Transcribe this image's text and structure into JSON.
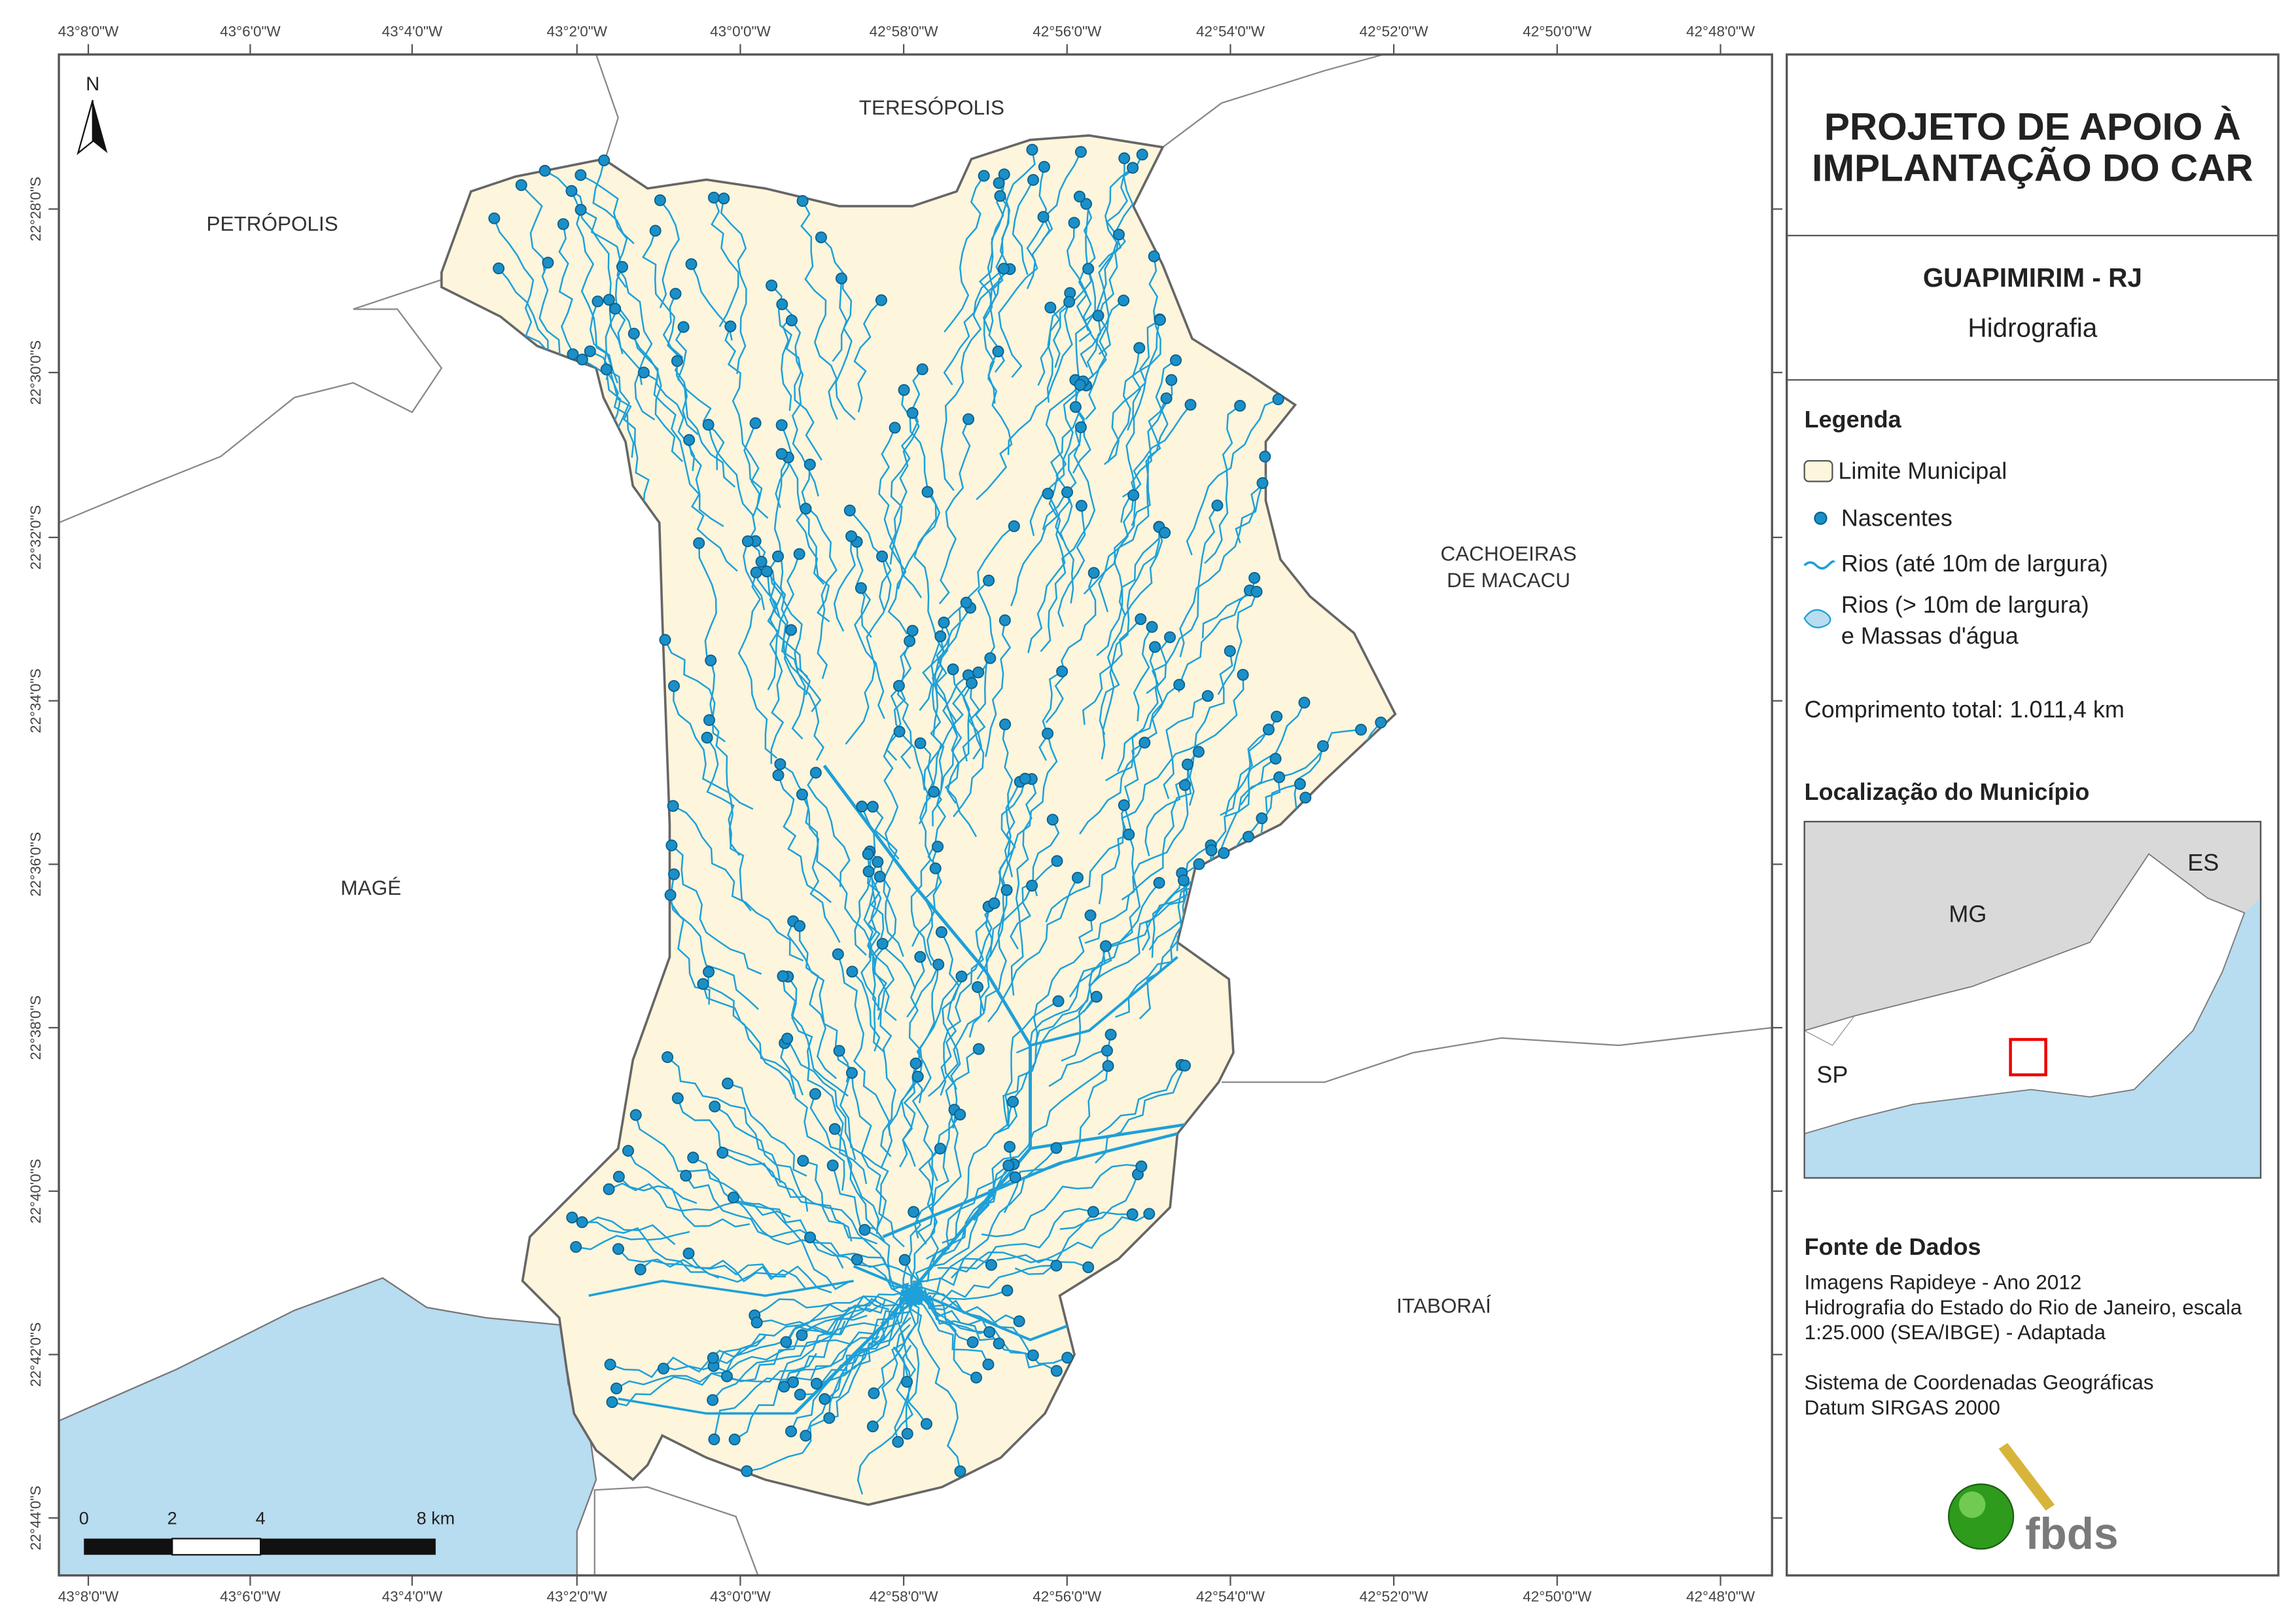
{
  "map": {
    "longitude_labels": [
      "43°8'0\"W",
      "43°6'0\"W",
      "43°4'0\"W",
      "43°2'0\"W",
      "43°0'0\"W",
      "42°58'0\"W",
      "42°56'0\"W",
      "42°54'0\"W",
      "42°52'0\"W",
      "42°50'0\"W",
      "42°48'0\"W"
    ],
    "latitude_labels": [
      "22°28'0\"S",
      "22°30'0\"S",
      "22°32'0\"S",
      "22°34'0\"S",
      "22°36'0\"S",
      "22°38'0\"S",
      "22°40'0\"S",
      "22°42'0\"S",
      "22°44'0\"S"
    ],
    "places": {
      "teresopolis": "TERESÓPOLIS",
      "petropolis": "PETRÓPOLIS",
      "cachoeiras_de_macacu": [
        "CACHOEIRAS",
        "DE MACACU"
      ],
      "mage": "MAGÉ",
      "itaborai": "ITABORAÍ"
    },
    "north": "N",
    "scale_labels": [
      "0",
      "2",
      "4",
      "8 km"
    ]
  },
  "panel": {
    "title": [
      "PROJETO DE APOIO À",
      "IMPLANTAÇÃO DO CAR"
    ],
    "municipality": "GUAPIMIRIM - RJ",
    "theme": "Hidrografia",
    "legend": {
      "heading": "Legenda",
      "items": [
        "Limite Municipal",
        "Nascentes",
        "Rios (até 10m de largura)",
        [
          "Rios (> 10m de largura)",
          "e Massas d'água"
        ]
      ]
    },
    "total_length": "Comprimento total:  1.011,4 km",
    "location": {
      "heading": "Localização do Município",
      "labels": [
        "MG",
        "ES",
        "SP"
      ]
    },
    "sources": {
      "heading": "Fonte de Dados",
      "lines": [
        "Imagens Rapideye - Ano 2012",
        "Hidrografia do Estado do Rio de Janeiro, escala",
        "1:25.000 (SEA/IBGE) - Adaptada",
        "Sistema de Coordenadas Geográficas",
        "Datum SIRGAS 2000"
      ]
    },
    "logo": "fbds"
  }
}
